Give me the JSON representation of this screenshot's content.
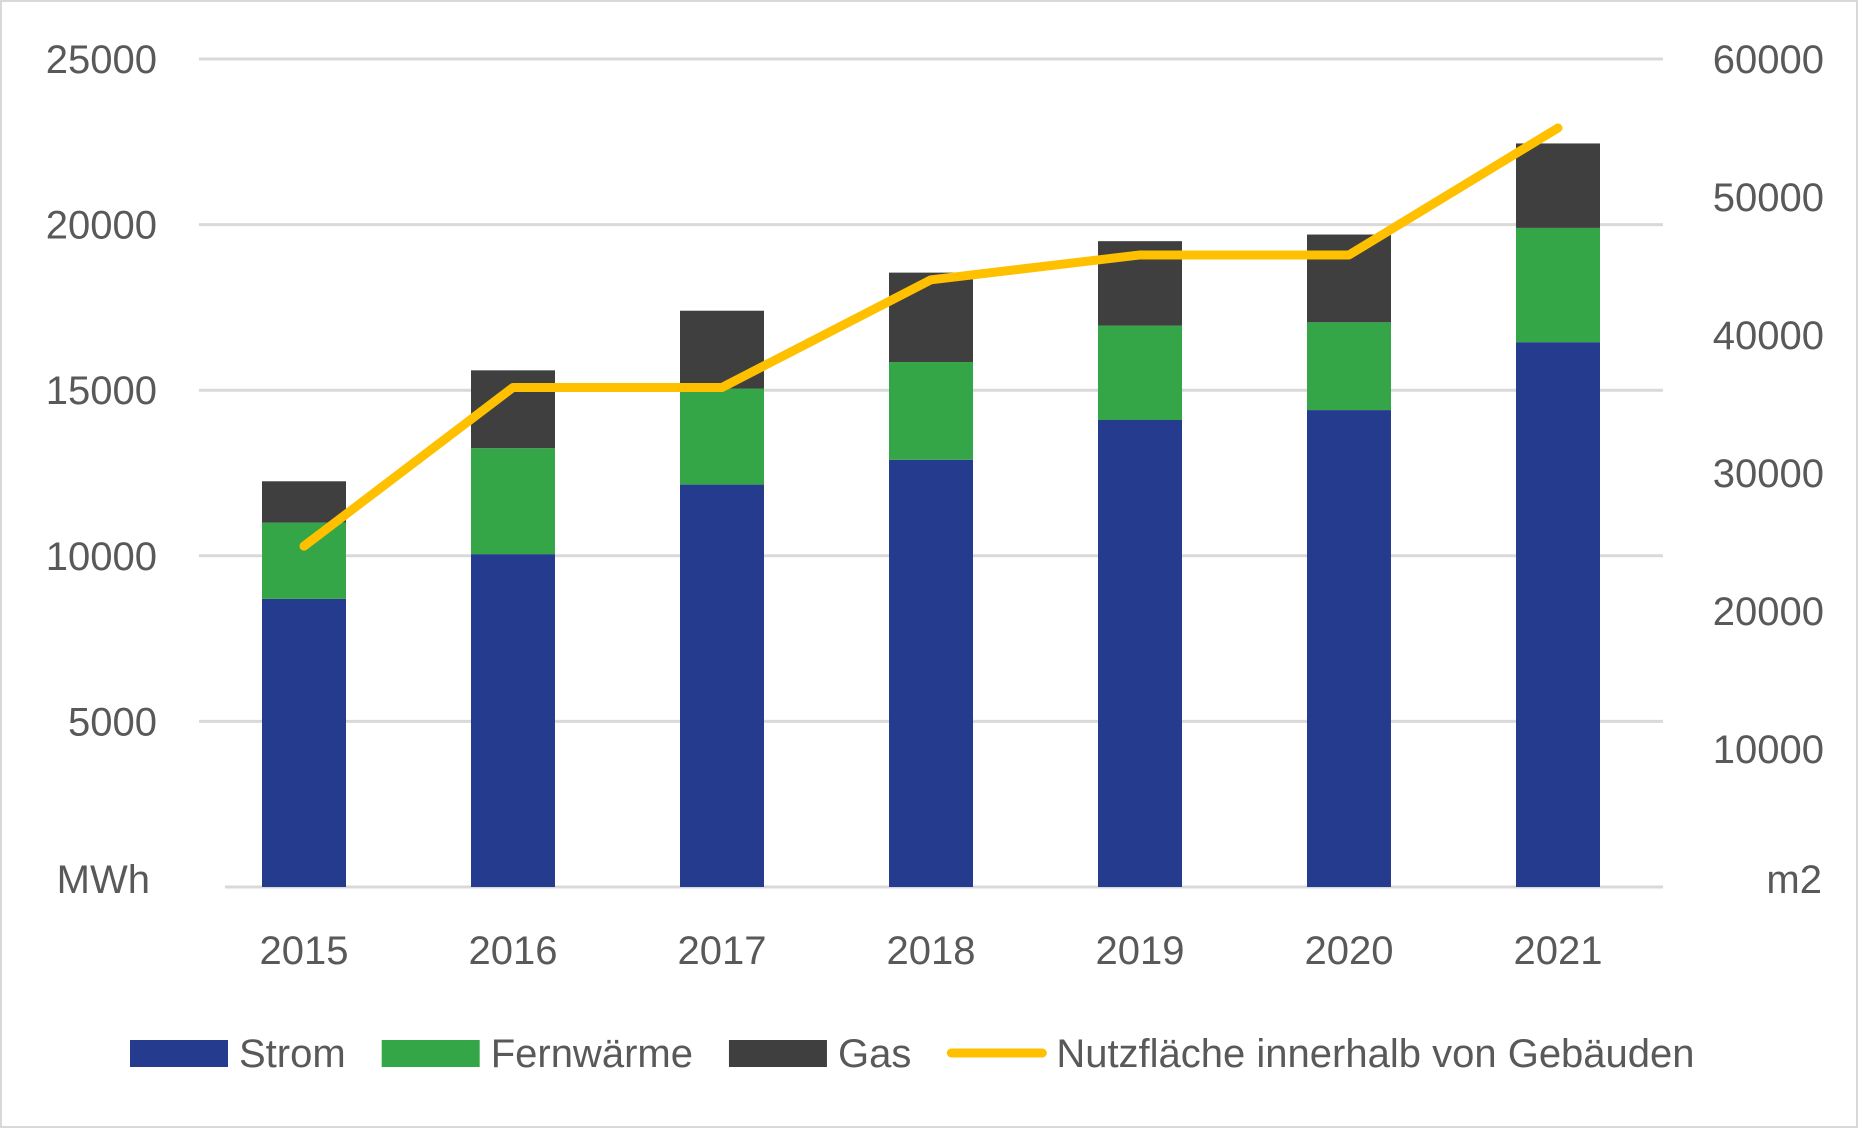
{
  "chart_data": {
    "type": "bar",
    "stacked": true,
    "title": "",
    "categories": [
      "2015",
      "2016",
      "2017",
      "2018",
      "2019",
      "2020",
      "2021"
    ],
    "series": [
      {
        "name": "Strom",
        "axis": "left",
        "color": "#253b8e",
        "values": [
          8700,
          10050,
          12150,
          12900,
          14100,
          14400,
          16450
        ]
      },
      {
        "name": "Fernwärme",
        "axis": "left",
        "color": "#34a647",
        "values": [
          2300,
          3200,
          2900,
          2950,
          2850,
          2650,
          3450
        ]
      },
      {
        "name": "Gas",
        "axis": "left",
        "color": "#3f3f40",
        "values": [
          1250,
          2350,
          2350,
          2700,
          2550,
          2650,
          2550
        ]
      },
      {
        "name": "Nutzfläche innerhalb von Gebäuden",
        "type": "line",
        "axis": "right",
        "color": "#ffc000",
        "values": [
          24700,
          36200,
          36200,
          44000,
          45800,
          45800,
          55000
        ]
      }
    ],
    "y_left": {
      "label": "MWh",
      "ylim": [
        0,
        25000
      ],
      "ticks": [
        "5000",
        "10000",
        "15000",
        "20000",
        "25000"
      ]
    },
    "y_right": {
      "label": "m2",
      "ylim": [
        0,
        60000
      ],
      "ticks": [
        "10000",
        "20000",
        "30000",
        "40000",
        "50000",
        "60000"
      ]
    },
    "grid": true,
    "grid_color": "#d9d9d9",
    "legend_position": "bottom"
  }
}
